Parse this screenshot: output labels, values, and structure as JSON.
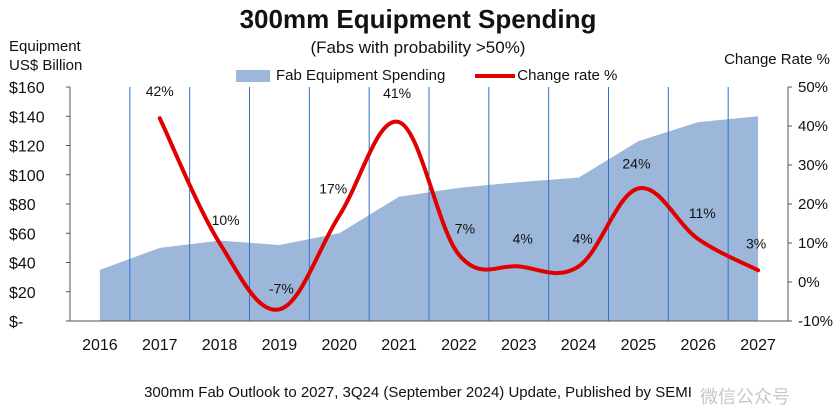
{
  "chart_data": {
    "type": "area+line",
    "title": "300mm Equipment Spending",
    "subtitle": "(Fabs with probability >50%)",
    "ylabel": [
      "Equipment",
      "US$ Billion"
    ],
    "y2label": "Change Rate %",
    "footer": "300mm Fab Outlook to 2027, 3Q24 (September 2024) Update, Published by SEMI",
    "categories": [
      "2016",
      "2017",
      "2018",
      "2019",
      "2020",
      "2021",
      "2022",
      "2023",
      "2024",
      "2025",
      "2026",
      "2027"
    ],
    "ylim": [
      0,
      160
    ],
    "y_ticks": [
      "$-",
      "$20",
      "$40",
      "$60",
      "$80",
      "$100",
      "$120",
      "$140",
      "$160"
    ],
    "y2lim": [
      -10,
      50
    ],
    "y2_ticks": [
      "-10%",
      "0%",
      "10%",
      "20%",
      "30%",
      "40%",
      "50%"
    ],
    "series": [
      {
        "name": "Fab Equipment Spending",
        "kind": "area",
        "color": "#9db7da",
        "values": [
          35,
          50,
          55,
          52,
          60,
          85,
          91,
          95,
          98,
          123,
          136,
          140
        ]
      },
      {
        "name": "Change rate %",
        "kind": "line",
        "color": "#e00000",
        "axis": "right",
        "values": [
          null,
          42,
          10,
          -7,
          17,
          41,
          7,
          4,
          4,
          24,
          11,
          3
        ],
        "labels": [
          null,
          "42%",
          "10%",
          "-7%",
          "17%",
          "41%",
          "7%",
          "4%",
          "4%",
          "24%",
          "11%",
          "3%"
        ]
      }
    ],
    "legend": [
      "Fab Equipment Spending",
      "Change rate %"
    ],
    "grid": "vertical",
    "watermark": "微信公众号"
  }
}
